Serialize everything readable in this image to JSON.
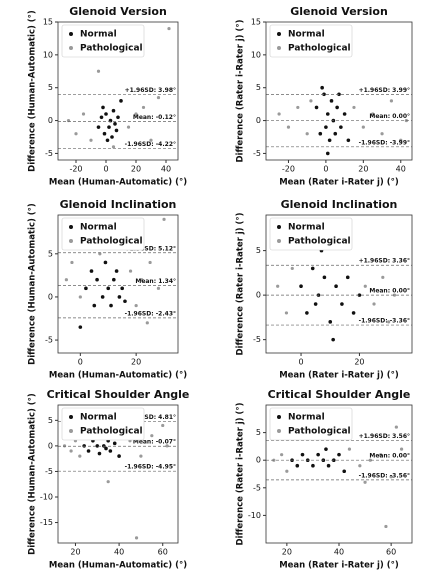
{
  "chart_data": [
    {
      "type": "scatter",
      "title": "Glenoid Version",
      "xlabel": "Mean (Human-Automatic) (°)",
      "ylabel": "Difference (Human-Automatic) (°)",
      "xlim": [
        -32,
        48
      ],
      "xticks": [
        -20,
        0,
        20,
        40
      ],
      "ylim": [
        -6,
        15
      ],
      "yticks": [
        -5,
        0,
        5,
        10,
        15
      ],
      "hlines": [
        {
          "value": 3.98,
          "label": "+1.96SD: 3.98°"
        },
        {
          "value": -0.12,
          "label": "Mean: -0.12°"
        },
        {
          "value": -4.22,
          "label": "-1.96SD: -4.22°"
        }
      ],
      "series": [
        {
          "name": "Normal",
          "color": "#111111",
          "x": [
            -5,
            -3,
            -1,
            0,
            2,
            3,
            4,
            5,
            6,
            8,
            1,
            -2,
            7,
            10
          ],
          "y": [
            -1,
            0.5,
            -2,
            1,
            -1,
            0,
            -2.5,
            1.5,
            -0.5,
            0.5,
            -3,
            2,
            -1.5,
            3
          ]
        },
        {
          "name": "Pathological",
          "color": "#9a9a9a",
          "x": [
            -25,
            -20,
            -15,
            -10,
            -5,
            5,
            15,
            25,
            30,
            35,
            42,
            20
          ],
          "y": [
            0,
            -2,
            1,
            -3,
            7.5,
            -4,
            -1,
            2,
            -3,
            3.5,
            14,
            1
          ]
        }
      ]
    },
    {
      "type": "scatter",
      "title": "Glenoid Version",
      "xlabel": "Mean (Rater i-Rater j) (°)",
      "ylabel": "Difference (Rater i-Rater j) (°)",
      "xlim": [
        -32,
        46
      ],
      "xticks": [
        -20,
        0,
        20,
        40
      ],
      "ylim": [
        -6,
        15
      ],
      "yticks": [
        -5,
        0,
        5,
        10,
        15
      ],
      "hlines": [
        {
          "value": 3.99,
          "label": "+1.96SD: 3.99°"
        },
        {
          "value": 0.0,
          "label": "Mean: 0.00°"
        },
        {
          "value": -3.99,
          "label": "-1.96SD: -3.99°"
        }
      ],
      "series": [
        {
          "name": "Normal",
          "color": "#111111",
          "x": [
            -5,
            -3,
            -1,
            0,
            1,
            2,
            3,
            4,
            5,
            6,
            8,
            10,
            -2,
            1,
            7,
            12
          ],
          "y": [
            2,
            -2,
            4,
            -1,
            1,
            -3,
            3,
            0,
            -2,
            2,
            -1,
            1,
            5,
            -5,
            4,
            -3
          ]
        },
        {
          "name": "Pathological",
          "color": "#9a9a9a",
          "x": [
            -25,
            -20,
            -15,
            -10,
            -8,
            15,
            20,
            25,
            30,
            35,
            40,
            43
          ],
          "y": [
            1,
            -1,
            2,
            -2,
            3,
            2,
            -1,
            1,
            -2,
            3,
            -3,
            0
          ]
        }
      ]
    },
    {
      "type": "scatter",
      "title": "Glenoid Inclination",
      "xlabel": "Mean (Human-Automatic) (°)",
      "ylabel": "Difference (Human-Automatic) (°)",
      "xlim": [
        -8,
        35
      ],
      "xticks": [
        0,
        20
      ],
      "ylim": [
        -6.5,
        9.5
      ],
      "yticks": [
        -5,
        0,
        5
      ],
      "hlines": [
        {
          "value": 5.12,
          "label": "+1.96SD: 5.12°"
        },
        {
          "value": 1.34,
          "label": "Mean: 1.34°"
        },
        {
          "value": -2.43,
          "label": "-1.96SD: -2.43°"
        }
      ],
      "series": [
        {
          "name": "Normal",
          "color": "#111111",
          "x": [
            2,
            4,
            5,
            6,
            8,
            9,
            10,
            11,
            12,
            13,
            14,
            15,
            0,
            16
          ],
          "y": [
            1,
            3,
            -1,
            2,
            0,
            4,
            1,
            -1,
            2,
            3,
            0,
            1,
            -3.5,
            -0.5
          ]
        },
        {
          "name": "Pathological",
          "color": "#9a9a9a",
          "x": [
            -5,
            -3,
            0,
            3,
            7,
            18,
            20,
            22,
            25,
            28,
            30,
            24
          ],
          "y": [
            2,
            4,
            0,
            6,
            5,
            3,
            -1,
            2,
            4,
            1,
            9,
            -3
          ]
        }
      ]
    },
    {
      "type": "scatter",
      "title": "Glenoid Inclination",
      "xlabel": "Mean (Rater i-Rater j) (°)",
      "ylabel": "Difference (Rater i-Rater j) (°)",
      "xlim": [
        -12,
        38
      ],
      "xticks": [
        0,
        20
      ],
      "ylim": [
        -6.5,
        9
      ],
      "yticks": [
        -5,
        0,
        5
      ],
      "hlines": [
        {
          "value": 3.36,
          "label": "+1.96SD: 3.36°"
        },
        {
          "value": 0.0,
          "label": "Mean: 0.00°"
        },
        {
          "value": -3.36,
          "label": "-1.96SD: -3.36°"
        }
      ],
      "series": [
        {
          "name": "Normal",
          "color": "#111111",
          "x": [
            0,
            2,
            4,
            5,
            6,
            8,
            10,
            12,
            14,
            16,
            18,
            20,
            7,
            11
          ],
          "y": [
            1,
            -2,
            3,
            -1,
            0,
            2,
            -3,
            1,
            -1,
            2,
            -2,
            0,
            5,
            -5
          ]
        },
        {
          "name": "Pathological",
          "color": "#9a9a9a",
          "x": [
            -8,
            -5,
            -3,
            22,
            25,
            28,
            30,
            32,
            -1
          ],
          "y": [
            1,
            -2,
            3,
            1,
            -1,
            2,
            -3,
            0,
            6
          ]
        }
      ]
    },
    {
      "type": "scatter",
      "title": "Critical Shoulder Angle",
      "xlabel": "Mean (Human-Automatic) (°)",
      "ylabel": "Difference (Human-Automatic) (°)",
      "xlim": [
        12,
        67
      ],
      "xticks": [
        20,
        40,
        60
      ],
      "ylim": [
        -19,
        8
      ],
      "yticks": [
        -15,
        -10,
        -5,
        0,
        5
      ],
      "hlines": [
        {
          "value": 4.81,
          "label": "+1.96SD: 4.81°"
        },
        {
          "value": -0.07,
          "label": "Mean: -0.07°"
        },
        {
          "value": -4.95,
          "label": "-1.96SD: -4.95°"
        }
      ],
      "series": [
        {
          "name": "Normal",
          "color": "#111111",
          "x": [
            24,
            26,
            28,
            30,
            31,
            32,
            33,
            34,
            35,
            36,
            38,
            40
          ],
          "y": [
            0,
            -1,
            1,
            0,
            -1.5,
            1.5,
            0,
            -0.5,
            1,
            -1,
            0.5,
            -2
          ]
        },
        {
          "name": "Pathological",
          "color": "#9a9a9a",
          "x": [
            15,
            18,
            20,
            22,
            42,
            45,
            50,
            55,
            60,
            35,
            48,
            62
          ],
          "y": [
            0,
            -1,
            1,
            -2,
            3,
            1,
            -2,
            2,
            4,
            -7,
            -18,
            0
          ]
        }
      ]
    },
    {
      "type": "scatter",
      "title": "Critical Shoulder Angle",
      "xlabel": "Mean (Rater i-Rater j) (°)",
      "ylabel": "Difference (Rater i-Rater j) (°)",
      "xlim": [
        12,
        68
      ],
      "xticks": [
        20,
        40,
        60
      ],
      "ylim": [
        -15,
        10
      ],
      "yticks": [
        -10,
        -5,
        0,
        5
      ],
      "hlines": [
        {
          "value": 3.56,
          "label": "+1.96SD: 3.56°"
        },
        {
          "value": 0.0,
          "label": "Mean: 0.00°"
        },
        {
          "value": -3.56,
          "label": "-1.96SD: -3.56°"
        }
      ],
      "series": [
        {
          "name": "Normal",
          "color": "#111111",
          "x": [
            22,
            24,
            26,
            28,
            30,
            32,
            34,
            35,
            36,
            38,
            40,
            42
          ],
          "y": [
            0,
            -1,
            1,
            0,
            -1,
            1,
            0,
            2,
            -1,
            0,
            1,
            -2
          ]
        },
        {
          "name": "Pathological",
          "color": "#9a9a9a",
          "x": [
            15,
            18,
            20,
            44,
            48,
            52,
            56,
            60,
            64,
            62,
            58,
            50
          ],
          "y": [
            0,
            1,
            -2,
            2,
            -1,
            0,
            1,
            -3,
            2,
            6,
            -12,
            -4
          ]
        }
      ]
    }
  ]
}
